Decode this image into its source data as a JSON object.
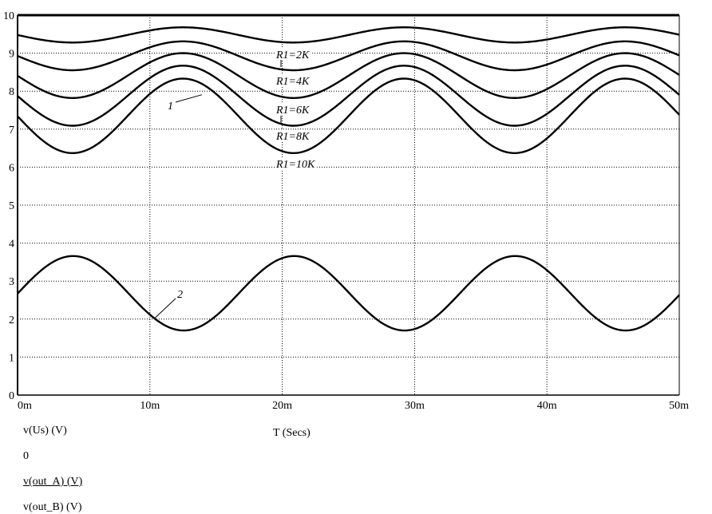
{
  "chart_data": {
    "type": "line",
    "xlabel": "T (Secs)",
    "xlim": [
      0,
      50
    ],
    "ylim": [
      0,
      10
    ],
    "grid": true,
    "x_ticks": [
      "0m",
      "10m",
      "20m",
      "30m",
      "40m",
      "50m"
    ],
    "y_ticks": [
      "0",
      "1",
      "2",
      "3",
      "4",
      "5",
      "6",
      "7",
      "8",
      "9",
      "10"
    ],
    "trace_labels": [
      "v(Us) (V)",
      "0",
      "v(out_A) (V)",
      "v(out_B) (V)"
    ],
    "series": [
      {
        "label": "R1=2K",
        "x_start": 0,
        "x_end": 50,
        "baseline": 9.48,
        "amplitude": 0.2,
        "period": 16.7,
        "peak_at": 12.5
      },
      {
        "label": "R1=4K",
        "x_start": 0,
        "x_end": 50,
        "baseline": 8.93,
        "amplitude": 0.38,
        "period": 16.7,
        "peak_at": 12.5
      },
      {
        "label": "R1=6K",
        "x_start": 0,
        "x_end": 50,
        "baseline": 8.41,
        "amplitude": 0.59,
        "period": 16.7,
        "peak_at": 12.5
      },
      {
        "label": "R1=8K",
        "x_start": 0,
        "x_end": 50,
        "baseline": 7.88,
        "amplitude": 0.79,
        "period": 16.7,
        "peak_at": 12.5
      },
      {
        "label": "R1=10K",
        "x_start": 0,
        "x_end": 50,
        "baseline": 7.35,
        "amplitude": 0.98,
        "period": 16.7,
        "peak_at": 12.5
      },
      {
        "label": "2",
        "x_start": 0,
        "x_end": 50,
        "baseline": 2.68,
        "amplitude": 0.98,
        "period": 16.7,
        "peak_at": 4.2
      }
    ],
    "annotations": [
      {
        "text": "1",
        "points_to": [
          12,
          8.2
        ]
      },
      {
        "text": "2",
        "points_to": [
          10,
          2.0
        ]
      }
    ]
  }
}
